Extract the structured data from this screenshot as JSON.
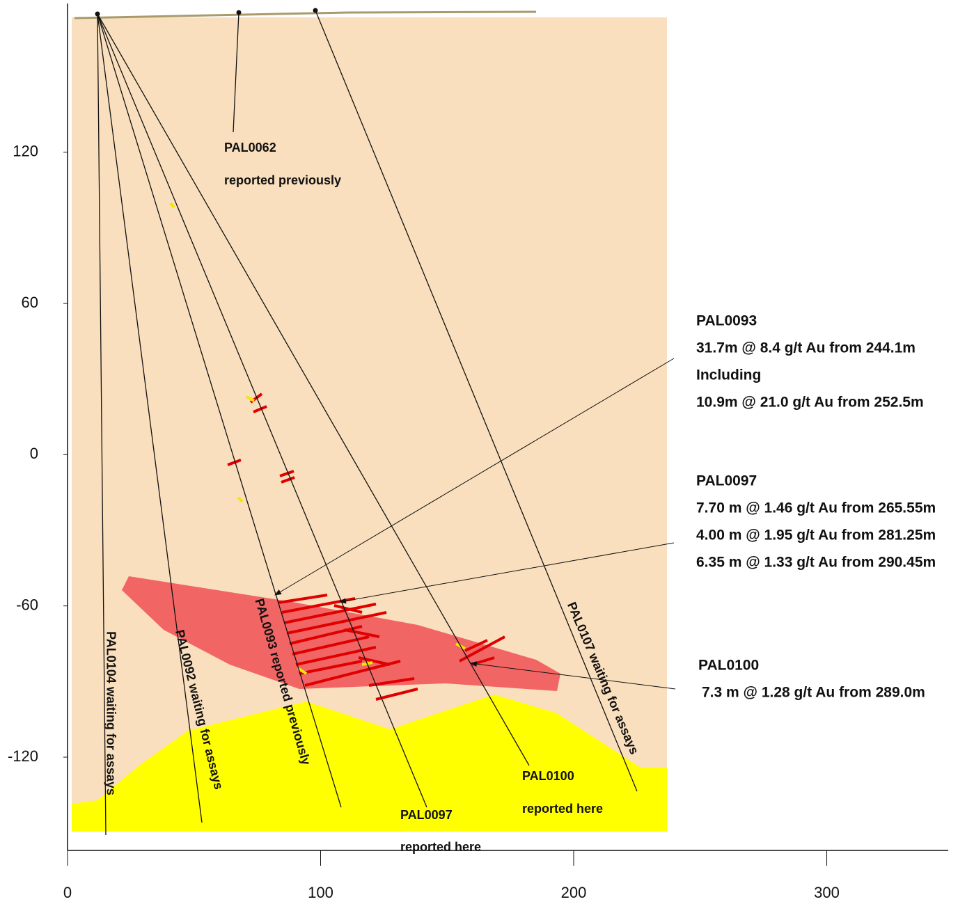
{
  "chart_data": {
    "type": "section",
    "xlim": [
      0,
      348
    ],
    "ylim": [
      -157,
      179
    ],
    "xticks": [
      0,
      100,
      200,
      300
    ],
    "yticks": [
      -120,
      -60,
      0,
      60,
      120
    ],
    "hole_labels": [
      "PAL0062",
      "reported previously",
      "PAL0104 waiting for assays",
      "PAL0092 waiting for assays",
      "PAL0093 reported previously",
      "PAL0097",
      "reported here",
      "PAL0100",
      "reported here",
      "PAL0107 waiting for assays"
    ],
    "results": [
      {
        "hole": "PAL0093",
        "lines": [
          "31.7m @ 8.4 g/t Au from 244.1m",
          "Including",
          "10.9m @ 21.0 g/t Au from 252.5m"
        ]
      },
      {
        "hole": "PAL0097",
        "lines": [
          "7.70 m @ 1.46 g/t Au from 265.55m",
          "4.00 m @ 1.95 g/t Au from 281.25m",
          "6.35 m @ 1.33 g/t Au from 290.45m"
        ]
      },
      {
        "hole": "PAL0100",
        "lines": [
          "7.3 m @ 1.28 g/t Au from 289.0m"
        ]
      }
    ]
  }
}
